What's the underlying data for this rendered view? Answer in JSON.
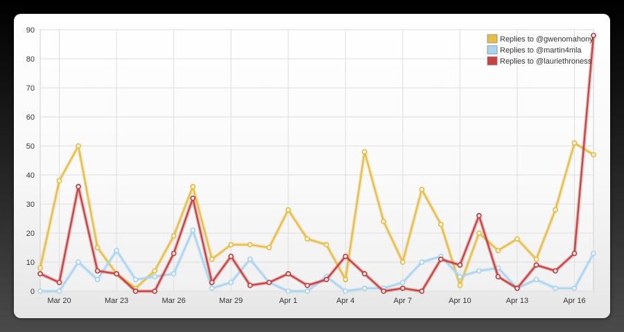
{
  "chart_data": {
    "type": "line",
    "title": "",
    "xlabel": "",
    "ylabel": "",
    "ylim": [
      0,
      90
    ],
    "yticks": [
      0,
      10,
      20,
      30,
      40,
      50,
      60,
      70,
      80,
      90
    ],
    "x": [
      "Mar 19",
      "Mar 20",
      "Mar 21",
      "Mar 22",
      "Mar 23",
      "Mar 24",
      "Mar 25",
      "Mar 26",
      "Mar 27",
      "Mar 28",
      "Mar 29",
      "Mar 30",
      "Mar 31",
      "Apr 1",
      "Apr 2",
      "Apr 3",
      "Apr 4",
      "Apr 5",
      "Apr 6",
      "Apr 7",
      "Apr 8",
      "Apr 9",
      "Apr 10",
      "Apr 11",
      "Apr 12",
      "Apr 13",
      "Apr 14",
      "Apr 15",
      "Apr 16",
      "Apr 17"
    ],
    "xtick_labels": [
      "Mar 20",
      "Mar 23",
      "Mar 26",
      "Mar 29",
      "Apr 1",
      "Apr 4",
      "Apr 7",
      "Apr 10",
      "Apr 13",
      "Apr 16"
    ],
    "grid": true,
    "legend_position": "top-right",
    "series": [
      {
        "name": "Replies to @gwenomahony",
        "color": "#e8bd45",
        "values": [
          8,
          38,
          50,
          15,
          6,
          1,
          7,
          19,
          36,
          11,
          16,
          16,
          15,
          28,
          18,
          16,
          4,
          48,
          24,
          10,
          35,
          23,
          2,
          20,
          14,
          18,
          11,
          28,
          51,
          47
        ]
      },
      {
        "name": "Replies to @martin4mla",
        "color": "#a8d4f0",
        "values": [
          0,
          0,
          10,
          4,
          14,
          4,
          5,
          6,
          21,
          1,
          3,
          11,
          3,
          0,
          0,
          5,
          0,
          1,
          1,
          3,
          10,
          12,
          5,
          7,
          8,
          1,
          4,
          1,
          1,
          13
        ]
      },
      {
        "name": "Replies to @lauriethroness",
        "color": "#c84040",
        "values": [
          6,
          3,
          36,
          7,
          6,
          0,
          0,
          13,
          32,
          3,
          12,
          2,
          3,
          6,
          2,
          4,
          12,
          6,
          0,
          1,
          0,
          11,
          9,
          26,
          5,
          1,
          9,
          7,
          13,
          88
        ]
      }
    ]
  }
}
